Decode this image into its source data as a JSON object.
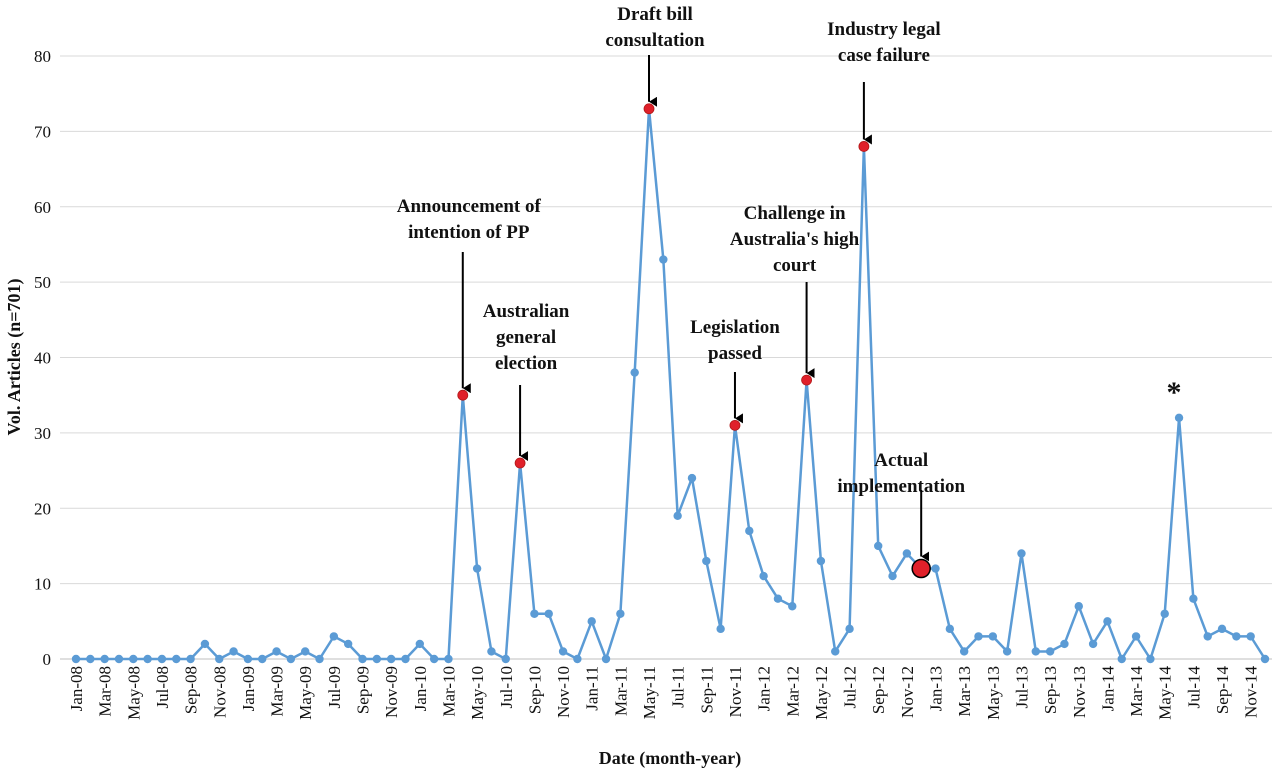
{
  "chart_data": {
    "type": "line",
    "xlabel": "Date (month-year)",
    "ylabel": "Vol. Articles (n=701)",
    "ylim": [
      0,
      80
    ],
    "yticks": [
      0,
      10,
      20,
      30,
      40,
      50,
      60,
      70,
      80
    ],
    "grid": "horizontal",
    "line_color": "#5b9bd5",
    "highlight_color": "#e0202a",
    "x_tick_labels": [
      "Jan-08",
      "Mar-08",
      "May-08",
      "Jul-08",
      "Sep-08",
      "Nov-08",
      "Jan-09",
      "Mar-09",
      "May-09",
      "Jul-09",
      "Sep-09",
      "Nov-09",
      "Jan-10",
      "Mar-10",
      "May-10",
      "Jul-10",
      "Sep-10",
      "Nov-10",
      "Jan-11",
      "Mar-11",
      "May-11",
      "Jul-11",
      "Sep-11",
      "Nov-11",
      "Jan-12",
      "Mar-12",
      "May-12",
      "Jul-12",
      "Sep-12",
      "Nov-12",
      "Jan-13",
      "Mar-13",
      "May-13",
      "Jul-13",
      "Sep-13",
      "Nov-13",
      "Jan-14",
      "Mar-14",
      "May-14",
      "Jul-14",
      "Sep-14",
      "Nov-14"
    ],
    "series": [
      {
        "values": [
          0,
          0,
          0,
          0,
          0,
          0,
          0,
          0,
          0,
          2,
          0,
          1,
          0,
          0,
          1,
          0,
          1,
          0,
          3,
          2,
          0,
          0,
          0,
          0,
          2,
          0,
          0,
          35,
          12,
          1,
          0,
          26,
          6,
          6,
          1,
          0,
          5,
          0,
          6,
          38,
          73,
          53,
          19,
          24,
          13,
          4,
          31,
          17,
          11,
          8,
          7,
          37,
          13,
          1,
          4,
          68,
          15,
          11,
          14,
          12,
          12,
          4,
          1,
          3,
          3,
          1,
          14,
          1,
          1,
          2,
          7,
          2,
          5,
          0,
          3,
          0,
          6,
          32,
          8,
          3,
          4,
          3,
          3,
          0
        ]
      }
    ],
    "annotations": [
      {
        "lines": [
          "Announcement of",
          "intention of PP"
        ],
        "point_index": 27
      },
      {
        "lines": [
          "Australian",
          "general",
          "election"
        ],
        "point_index": 31
      },
      {
        "lines": [
          "Draft bill",
          "consultation"
        ],
        "point_index": 40
      },
      {
        "lines": [
          "Legislation",
          "passed"
        ],
        "point_index": 46
      },
      {
        "lines": [
          "Challenge in",
          "Australia's high",
          "court"
        ],
        "point_index": 51
      },
      {
        "lines": [
          "Industry legal",
          "case failure"
        ],
        "point_index": 55
      },
      {
        "lines": [
          "Actual",
          "implementation"
        ],
        "point_index": 59,
        "large_marker": true
      },
      {
        "lines": [
          "*"
        ],
        "point_index": 77,
        "no_arrow": true
      }
    ]
  }
}
